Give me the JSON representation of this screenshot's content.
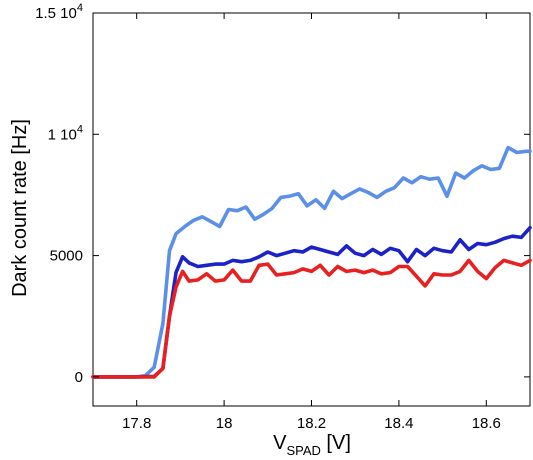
{
  "chart_data": {
    "type": "line",
    "xlabel": "V",
    "xlabel_sub": "SPAD",
    "xlabel_unit": " [V]",
    "ylabel": "Dark count rate [Hz]",
    "xlim": [
      17.7,
      18.7
    ],
    "ylim": [
      -1200,
      15000
    ],
    "grid": false,
    "x_ticks": [
      {
        "value": 17.8,
        "label": "17.8"
      },
      {
        "value": 18.0,
        "label": "18"
      },
      {
        "value": 18.2,
        "label": "18.2"
      },
      {
        "value": 18.4,
        "label": "18.4"
      },
      {
        "value": 18.6,
        "label": "18.6"
      }
    ],
    "y_ticks": [
      {
        "value": 0,
        "label": "0",
        "exp": ""
      },
      {
        "value": 5000,
        "label": "5000",
        "exp": ""
      },
      {
        "value": 10000,
        "label": "1 10",
        "exp": "4"
      },
      {
        "value": 15000,
        "label": "1.5 10",
        "exp": "4"
      }
    ],
    "series": [
      {
        "color": "#5b8fe8",
        "points": [
          [
            17.7,
            0
          ],
          [
            17.75,
            0
          ],
          [
            17.8,
            0
          ],
          [
            17.82,
            50
          ],
          [
            17.84,
            400
          ],
          [
            17.86,
            2200
          ],
          [
            17.875,
            5200
          ],
          [
            17.89,
            5900
          ],
          [
            17.91,
            6200
          ],
          [
            17.93,
            6450
          ],
          [
            17.95,
            6600
          ],
          [
            17.97,
            6400
          ],
          [
            17.99,
            6200
          ],
          [
            18.01,
            6900
          ],
          [
            18.03,
            6850
          ],
          [
            18.05,
            7000
          ],
          [
            18.07,
            6500
          ],
          [
            18.09,
            6700
          ],
          [
            18.11,
            6950
          ],
          [
            18.13,
            7400
          ],
          [
            18.15,
            7450
          ],
          [
            18.17,
            7550
          ],
          [
            18.19,
            7050
          ],
          [
            18.21,
            7300
          ],
          [
            18.23,
            6950
          ],
          [
            18.25,
            7650
          ],
          [
            18.27,
            7350
          ],
          [
            18.29,
            7550
          ],
          [
            18.31,
            7750
          ],
          [
            18.33,
            7600
          ],
          [
            18.35,
            7400
          ],
          [
            18.37,
            7650
          ],
          [
            18.39,
            7800
          ],
          [
            18.41,
            8200
          ],
          [
            18.43,
            8000
          ],
          [
            18.45,
            8250
          ],
          [
            18.47,
            8150
          ],
          [
            18.49,
            8200
          ],
          [
            18.51,
            7450
          ],
          [
            18.53,
            8400
          ],
          [
            18.55,
            8200
          ],
          [
            18.57,
            8500
          ],
          [
            18.59,
            8700
          ],
          [
            18.61,
            8550
          ],
          [
            18.63,
            8600
          ],
          [
            18.65,
            9450
          ],
          [
            18.67,
            9250
          ],
          [
            18.69,
            9300
          ],
          [
            18.7,
            9300
          ]
        ]
      },
      {
        "color": "#1a22c8",
        "points": [
          [
            17.7,
            0
          ],
          [
            17.8,
            0
          ],
          [
            17.84,
            20
          ],
          [
            17.86,
            350
          ],
          [
            17.875,
            2500
          ],
          [
            17.89,
            4300
          ],
          [
            17.905,
            4950
          ],
          [
            17.92,
            4700
          ],
          [
            17.94,
            4550
          ],
          [
            17.96,
            4600
          ],
          [
            17.98,
            4650
          ],
          [
            18.0,
            4650
          ],
          [
            18.02,
            4800
          ],
          [
            18.04,
            4750
          ],
          [
            18.06,
            4800
          ],
          [
            18.08,
            4950
          ],
          [
            18.1,
            5150
          ],
          [
            18.12,
            5000
          ],
          [
            18.14,
            5100
          ],
          [
            18.16,
            5200
          ],
          [
            18.18,
            5150
          ],
          [
            18.2,
            5350
          ],
          [
            18.22,
            5250
          ],
          [
            18.24,
            5150
          ],
          [
            18.26,
            5050
          ],
          [
            18.28,
            5400
          ],
          [
            18.3,
            5100
          ],
          [
            18.32,
            5000
          ],
          [
            18.34,
            5250
          ],
          [
            18.36,
            5050
          ],
          [
            18.38,
            5300
          ],
          [
            18.4,
            5200
          ],
          [
            18.42,
            4750
          ],
          [
            18.44,
            5250
          ],
          [
            18.46,
            5000
          ],
          [
            18.48,
            5300
          ],
          [
            18.5,
            5200
          ],
          [
            18.52,
            5150
          ],
          [
            18.54,
            5650
          ],
          [
            18.56,
            5250
          ],
          [
            18.58,
            5500
          ],
          [
            18.6,
            5450
          ],
          [
            18.62,
            5550
          ],
          [
            18.64,
            5700
          ],
          [
            18.66,
            5800
          ],
          [
            18.68,
            5750
          ],
          [
            18.7,
            6150
          ]
        ]
      },
      {
        "color": "#e82020",
        "points": [
          [
            17.7,
            0
          ],
          [
            17.8,
            0
          ],
          [
            17.84,
            0
          ],
          [
            17.86,
            350
          ],
          [
            17.875,
            2500
          ],
          [
            17.89,
            3700
          ],
          [
            17.905,
            4350
          ],
          [
            17.92,
            3950
          ],
          [
            17.94,
            4000
          ],
          [
            17.96,
            4250
          ],
          [
            17.98,
            3950
          ],
          [
            18.0,
            4000
          ],
          [
            18.02,
            4400
          ],
          [
            18.04,
            3950
          ],
          [
            18.06,
            3950
          ],
          [
            18.08,
            4600
          ],
          [
            18.1,
            4650
          ],
          [
            18.12,
            4200
          ],
          [
            18.14,
            4250
          ],
          [
            18.16,
            4300
          ],
          [
            18.18,
            4450
          ],
          [
            18.2,
            4350
          ],
          [
            18.22,
            4600
          ],
          [
            18.24,
            4200
          ],
          [
            18.26,
            4550
          ],
          [
            18.28,
            4350
          ],
          [
            18.3,
            4400
          ],
          [
            18.32,
            4300
          ],
          [
            18.34,
            4400
          ],
          [
            18.36,
            4250
          ],
          [
            18.38,
            4300
          ],
          [
            18.4,
            4550
          ],
          [
            18.42,
            4550
          ],
          [
            18.44,
            4150
          ],
          [
            18.46,
            3750
          ],
          [
            18.48,
            4250
          ],
          [
            18.5,
            4200
          ],
          [
            18.52,
            4200
          ],
          [
            18.54,
            4350
          ],
          [
            18.56,
            4800
          ],
          [
            18.58,
            4350
          ],
          [
            18.6,
            4050
          ],
          [
            18.62,
            4500
          ],
          [
            18.64,
            4800
          ],
          [
            18.66,
            4700
          ],
          [
            18.68,
            4600
          ],
          [
            18.7,
            4800
          ]
        ]
      }
    ]
  }
}
